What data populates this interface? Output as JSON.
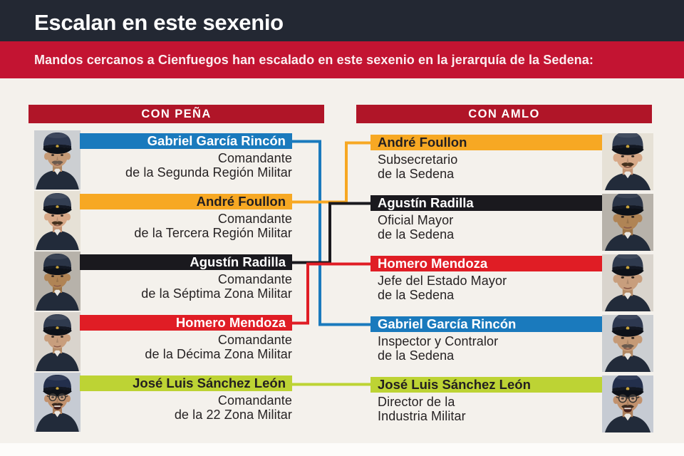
{
  "header": {
    "title": "Escalan en este sexenio",
    "subtitle": "Mandos cercanos a Cienfuegos han escalado en este sexenio en la jerarquía de la Sedena:"
  },
  "palette": {
    "header_bg": "#232833",
    "banner_red": "#c31432",
    "column_header_red": "#b01528",
    "background": "#f4f1ec",
    "text_dark": "#262223",
    "blue": "#1a7abd",
    "orange": "#f7a823",
    "black": "#1a191e",
    "red": "#e01d25",
    "lime": "#bdd334",
    "white": "#ffffff"
  },
  "left_column": {
    "header": "CON PEÑA",
    "entries": [
      {
        "name": "Gabriel García Rincón",
        "role_line1": "Comandante",
        "role_line2": "de la Segunda Región Militar",
        "color": "blue"
      },
      {
        "name": "André Foullon",
        "role_line1": "Comandante",
        "role_line2": "de la Tercera Región Militar",
        "color": "orange"
      },
      {
        "name": "Agustín Radilla",
        "role_line1": "Comandante",
        "role_line2": "de la Séptima Zona Militar",
        "color": "black"
      },
      {
        "name": "Homero Mendoza",
        "role_line1": "Comandante",
        "role_line2": "de la Décima Zona Militar",
        "color": "red"
      },
      {
        "name": "José Luis Sánchez León",
        "role_line1": "Comandante",
        "role_line2": "de la 22 Zona Militar",
        "color": "lime"
      }
    ]
  },
  "right_column": {
    "header": "CON AMLO",
    "entries": [
      {
        "name": "André Foullon",
        "role_line1": "Subsecretario",
        "role_line2": "de la Sedena",
        "color": "orange"
      },
      {
        "name": "Agustín Radilla",
        "role_line1": "Oficial Mayor",
        "role_line2": "de la Sedena",
        "color": "black"
      },
      {
        "name": "Homero Mendoza",
        "role_line1": "Jefe del Estado Mayor",
        "role_line2": "de la Sedena",
        "color": "red"
      },
      {
        "name": "Gabriel García Rincón",
        "role_line1": "Inspector y Contralor",
        "role_line2": "de la Sedena",
        "color": "blue"
      },
      {
        "name": "José Luis Sánchez León",
        "role_line1": "Director de la",
        "role_line2": "Industria Militar",
        "color": "lime"
      }
    ]
  },
  "connections": [
    {
      "from_index": 0,
      "to_index": 3,
      "color": "blue"
    },
    {
      "from_index": 1,
      "to_index": 0,
      "color": "orange"
    },
    {
      "from_index": 2,
      "to_index": 1,
      "color": "black"
    },
    {
      "from_index": 3,
      "to_index": 2,
      "color": "red"
    },
    {
      "from_index": 4,
      "to_index": 4,
      "color": "lime"
    }
  ]
}
